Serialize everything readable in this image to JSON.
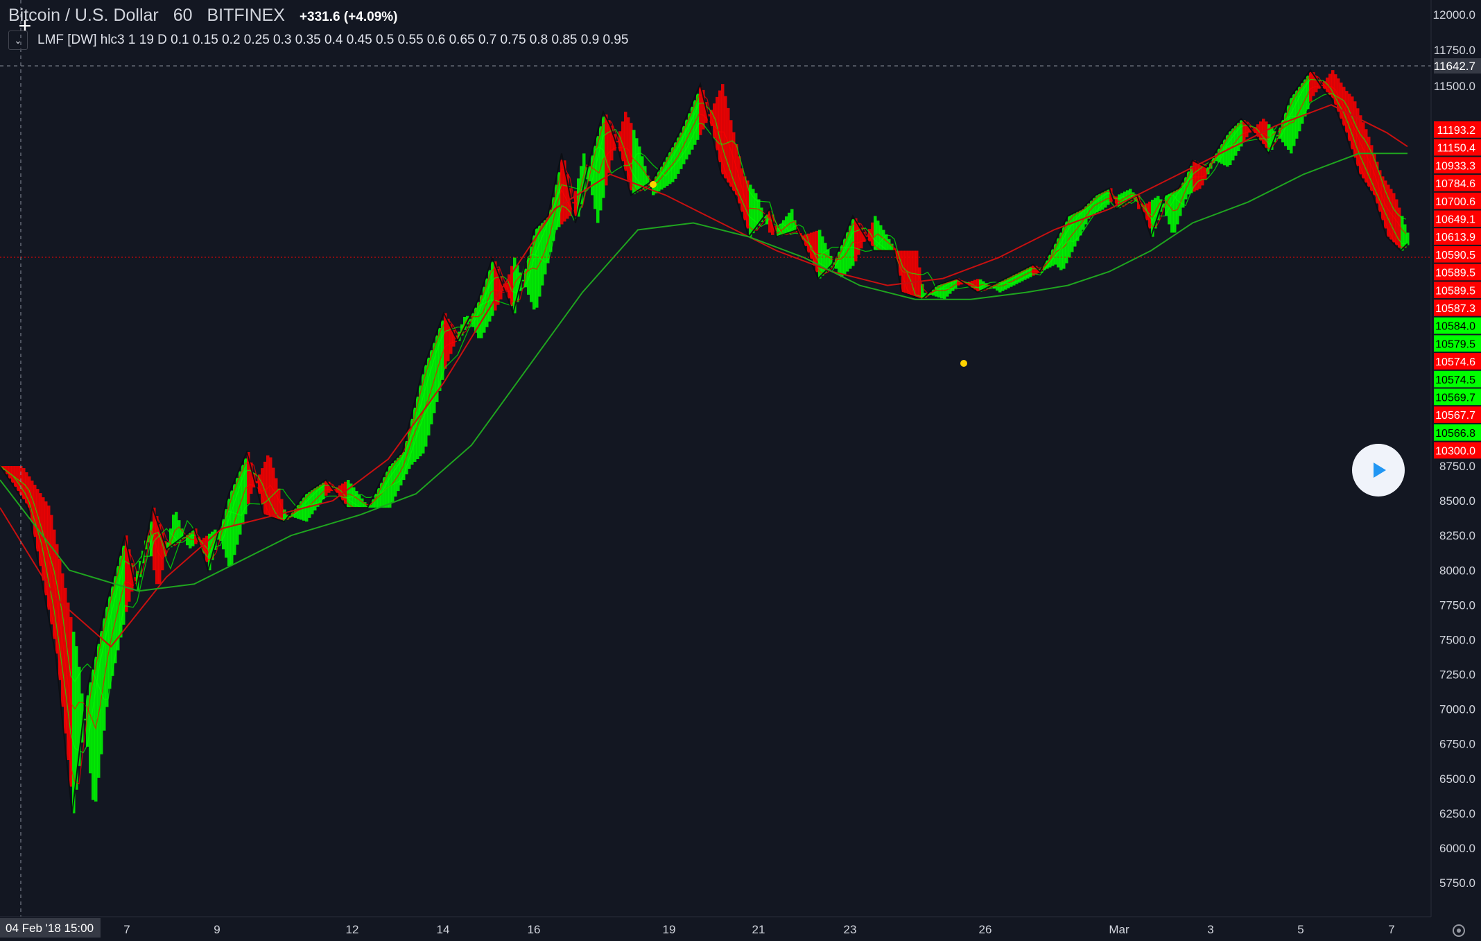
{
  "header": {
    "symbol": "Bitcoin / U.S. Dollar",
    "interval": "60",
    "exchange": "BITFINEX",
    "change": "+331.6 (+4.09%)"
  },
  "indicator": {
    "legend": "LMF [DW] hlc3 1 19 D 0.1 0.15 0.2 0.25 0.3 0.35 0.4 0.45 0.5 0.55 0.6 0.65 0.7 0.75 0.8 0.85 0.9 0.95",
    "toggle_icon": "chevron-down-icon"
  },
  "colors": {
    "background": "#131722",
    "bull": "#00ff00",
    "bear": "#ff0000",
    "label_text_on_green": "#000000",
    "label_text_on_red": "#ffffff",
    "axis_text": "#d1d4dc"
  },
  "play_icon": "play-icon",
  "settings_icon": "gear-icon",
  "chart_data": {
    "type": "line",
    "title": "Bitcoin / U.S. Dollar · 60 · BITFINEX",
    "ylim": [
      5650,
      12080
    ],
    "y_ticks": [
      5750,
      6000,
      6250,
      6500,
      6750,
      7000,
      7250,
      7500,
      7750,
      8000,
      8250,
      8500,
      8750,
      11500,
      11750,
      12000
    ],
    "x_labels": [
      "04 Feb '18  15:00",
      "7",
      "9",
      "12",
      "14",
      "16",
      "19",
      "21",
      "23",
      "26",
      "Mar",
      "3",
      "5",
      "7"
    ],
    "crosshair_price": "11642.7",
    "last_price_line": 10590.5,
    "price_labels": [
      {
        "text": "11193.2",
        "color": "red"
      },
      {
        "text": "11150.4",
        "color": "red"
      },
      {
        "text": "10933.3",
        "color": "red"
      },
      {
        "text": "10784.6",
        "color": "red"
      },
      {
        "text": "10700.6",
        "color": "red"
      },
      {
        "text": "10649.1",
        "color": "red"
      },
      {
        "text": "10613.9",
        "color": "red"
      },
      {
        "text": "10590.5",
        "color": "red"
      },
      {
        "text": "10589.5",
        "color": "red"
      },
      {
        "text": "10589.5",
        "color": "red"
      },
      {
        "text": "10587.3",
        "color": "red"
      },
      {
        "text": "10584.0",
        "color": "green"
      },
      {
        "text": "10579.5",
        "color": "green"
      },
      {
        "text": "10574.6",
        "color": "red"
      },
      {
        "text": "10574.5",
        "color": "green"
      },
      {
        "text": "10569.7",
        "color": "green"
      },
      {
        "text": "10567.7",
        "color": "red"
      },
      {
        "text": "10566.8",
        "color": "green"
      },
      {
        "text": "10300.0",
        "color": "red"
      }
    ],
    "series": [
      {
        "x": [
          0,
          40,
          80,
          104,
          124,
          150,
          180,
          196,
          220,
          240,
          280,
          300,
          330,
          356,
          380,
          410,
          440,
          470,
          500,
          530,
          560,
          580,
          610,
          640,
          660,
          690,
          710,
          740,
          770,
          790,
          810,
          830,
          850,
          870,
          880,
          890,
          910,
          940,
          980,
          1010,
          1040,
          1060,
          1080,
          1110,
          1120,
          1150,
          1180,
          1200,
          1230,
          1260,
          1290,
          1300,
          1330,
          1350,
          1380,
          1410,
          1430,
          1450,
          1470,
          1490,
          1500,
          1540,
          1560,
          1580,
          1600,
          1610,
          1640,
          1660,
          1680,
          1700,
          1720,
          1740,
          1770,
          1790,
          1800,
          1830,
          1860,
          1890,
          1910,
          1920,
          1940,
          1960,
          1980,
          2000,
          2020,
          2030
        ],
        "values": [
          8750,
          8450,
          7400,
          6250,
          7100,
          7700,
          8250,
          7850,
          8450,
          8150,
          8300,
          8000,
          8550,
          8850,
          8400,
          8350,
          8550,
          8650,
          8450,
          8450,
          8750,
          8850,
          9450,
          9850,
          9650,
          9950,
          10250,
          9850,
          10450,
          10550,
          11000,
          10500,
          10950,
          11300,
          11200,
          11050,
          10700,
          10800,
          11150,
          11500,
          10850,
          10700,
          10400,
          10600,
          10400,
          10450,
          10100,
          10200,
          10550,
          10300,
          10300,
          10000,
          9950,
          10050,
          10100,
          10000,
          10050,
          10100,
          10150,
          10200,
          10150,
          10550,
          10600,
          10700,
          10750,
          10600,
          10700,
          10400,
          10700,
          10750,
          10950,
          10900,
          11150,
          11250,
          11200,
          11000,
          11400,
          11600,
          11450,
          11400,
          11150,
          10850,
          10700,
          10400,
          10300,
          10350
        ]
      },
      {
        "x": [
          0,
          80,
          160,
          240,
          320,
          400,
          480,
          560,
          640,
          720,
          800,
          880,
          960,
          1040,
          1120,
          1200,
          1280,
          1360,
          1440,
          1520,
          1600,
          1680,
          1760,
          1840,
          1920,
          2000,
          2030
        ],
        "values": [
          8450,
          7800,
          7450,
          7950,
          8300,
          8400,
          8500,
          8800,
          9350,
          10000,
          10600,
          10850,
          10700,
          10500,
          10300,
          10150,
          10050,
          10100,
          10250,
          10450,
          10600,
          10800,
          11000,
          11200,
          11350,
          11150,
          11050
        ]
      },
      {
        "x": [
          0,
          100,
          200,
          280,
          340,
          420,
          520,
          600,
          680,
          760,
          840,
          920,
          1000,
          1080,
          1160,
          1240,
          1320,
          1400,
          1480,
          1540,
          1600,
          1660,
          1720,
          1800,
          1880,
          1960,
          2030
        ],
        "values": [
          8650,
          8000,
          7850,
          7900,
          8050,
          8250,
          8400,
          8550,
          8900,
          9450,
          10000,
          10450,
          10500,
          10400,
          10250,
          10050,
          9950,
          9950,
          10000,
          10050,
          10150,
          10300,
          10500,
          10650,
          10850,
          11000,
          11000
        ]
      }
    ]
  }
}
